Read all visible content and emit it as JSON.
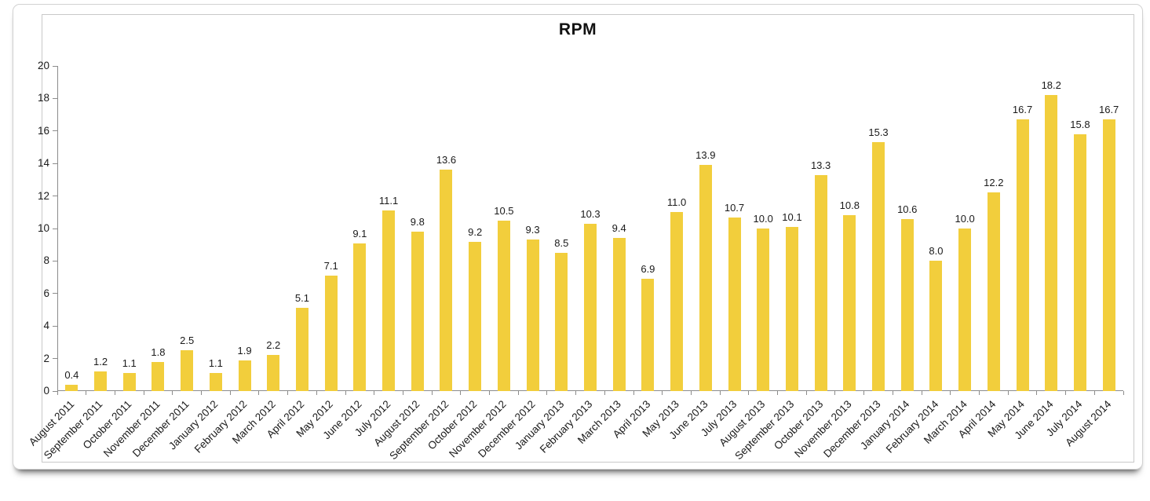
{
  "chart_data": {
    "type": "bar",
    "title": "RPM",
    "categories": [
      "August 2011",
      "September 2011",
      "October 2011",
      "November 2011",
      "December 2011",
      "January 2012",
      "February 2012",
      "March 2012",
      "April 2012",
      "May 2012",
      "June 2012",
      "July 2012",
      "August 2012",
      "September 2012",
      "October 2012",
      "November 2012",
      "December 2012",
      "January 2013",
      "February 2013",
      "March 2013",
      "April 2013",
      "May 2013",
      "June 2013",
      "July 2013",
      "August 2013",
      "September 2013",
      "October 2013",
      "November 2013",
      "December 2013",
      "January 2014",
      "February 2014",
      "March 2014",
      "April 2014",
      "May 2014",
      "June 2014",
      "July 2014",
      "August 2014"
    ],
    "values": [
      0.4,
      1.2,
      1.1,
      1.8,
      2.5,
      1.1,
      1.9,
      2.2,
      5.1,
      7.1,
      9.1,
      11.1,
      9.8,
      13.6,
      9.2,
      10.5,
      9.3,
      8.5,
      10.3,
      9.4,
      6.9,
      11.0,
      13.9,
      10.7,
      10.0,
      10.1,
      13.3,
      10.8,
      15.3,
      10.6,
      8.0,
      10.0,
      12.2,
      16.7,
      18.2,
      15.8,
      16.7
    ],
    "ylim": [
      0,
      20
    ],
    "ytick_step": 2,
    "ytick_labels": [
      "0",
      "2",
      "4",
      "6",
      "8",
      "10",
      "12",
      "14",
      "16",
      "18",
      "20"
    ],
    "xlabel": "",
    "ylabel": "",
    "grid": false,
    "legend_position": "none",
    "value_labels": true,
    "value_label_format": "one_decimal",
    "bar_color": "#F2CE3C",
    "axis_color": "#8C8C8C",
    "text_color": "#1A1A1A"
  }
}
